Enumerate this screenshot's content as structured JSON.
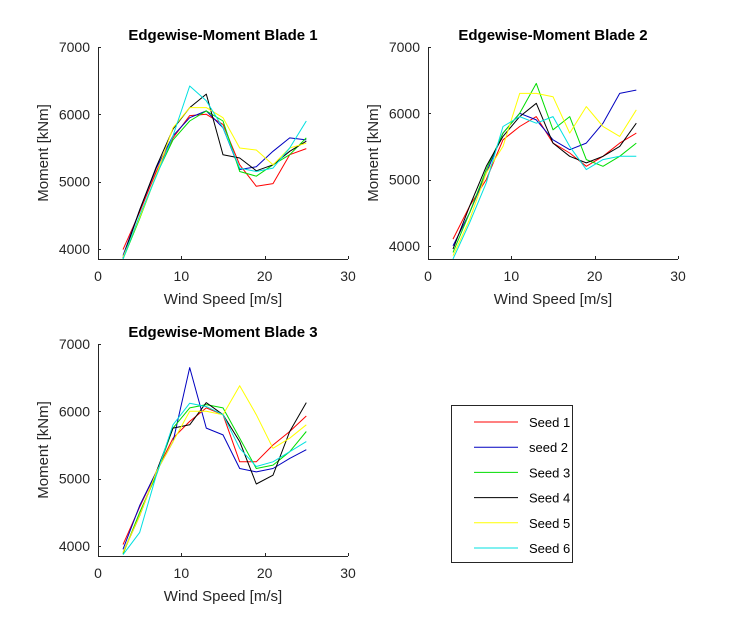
{
  "chart_data": [
    {
      "type": "line",
      "title": "Edgewise-Moment Blade 1",
      "xlabel": "Wind Speed [m/s]",
      "ylabel": "Moment [kNm]",
      "xlim": [
        0,
        30
      ],
      "ylim": [
        3850,
        7000
      ],
      "xticks": [
        0,
        10,
        20,
        30
      ],
      "yticks": [
        4000,
        5000,
        6000,
        7000
      ],
      "grid": false,
      "x": [
        3,
        5,
        7,
        9,
        11,
        13,
        15,
        17,
        19,
        21,
        23,
        25
      ],
      "series": [
        {
          "name": "Seed 1",
          "color": "#ff0000",
          "values": [
            3990,
            4550,
            5150,
            5650,
            5980,
            6000,
            5850,
            5250,
            4930,
            4970,
            5400,
            5490
          ]
        },
        {
          "name": "seed 2",
          "color": "#0000c0",
          "values": [
            3900,
            4580,
            5200,
            5680,
            5950,
            6050,
            5800,
            5180,
            5220,
            5450,
            5650,
            5620
          ]
        },
        {
          "name": "Seed 3",
          "color": "#00dd00",
          "values": [
            3850,
            4450,
            5100,
            5620,
            5900,
            6050,
            5900,
            5150,
            5080,
            5250,
            5400,
            5650
          ]
        },
        {
          "name": "Seed 4",
          "color": "#000000",
          "values": [
            3870,
            4580,
            5220,
            5780,
            6100,
            6300,
            5400,
            5350,
            5160,
            5250,
            5450,
            5600
          ]
        },
        {
          "name": "Seed 5",
          "color": "#ffff00",
          "values": [
            3880,
            4470,
            5100,
            5800,
            6100,
            6100,
            5950,
            5500,
            5470,
            5250,
            5500,
            5570
          ]
        },
        {
          "name": "Seed 6",
          "color": "#00e0e0",
          "values": [
            3850,
            4500,
            5080,
            5680,
            6420,
            6200,
            5800,
            5200,
            5150,
            5200,
            5500,
            5900
          ]
        }
      ]
    },
    {
      "type": "line",
      "title": "Edgewise-Moment Blade 2",
      "xlabel": "Wind Speed [m/s]",
      "ylabel": "Moment [kNm]",
      "xlim": [
        0,
        30
      ],
      "ylim": [
        3800,
        7000
      ],
      "xticks": [
        0,
        10,
        20,
        30
      ],
      "yticks": [
        4000,
        5000,
        6000,
        7000
      ],
      "grid": false,
      "x": [
        3,
        5,
        7,
        9,
        11,
        13,
        15,
        17,
        19,
        21,
        23,
        25
      ],
      "series": [
        {
          "name": "Seed 1",
          "color": "#ff0000",
          "values": [
            4100,
            4600,
            5000,
            5600,
            5800,
            5950,
            5550,
            5400,
            5200,
            5350,
            5550,
            5700
          ]
        },
        {
          "name": "seed 2",
          "color": "#0000c0",
          "values": [
            4000,
            4500,
            5100,
            5700,
            6000,
            5900,
            5600,
            5450,
            5550,
            5850,
            6300,
            6350
          ]
        },
        {
          "name": "Seed 3",
          "color": "#00dd00",
          "values": [
            3900,
            4500,
            5150,
            5700,
            6000,
            6450,
            5750,
            5950,
            5300,
            5200,
            5350,
            5550
          ]
        },
        {
          "name": "Seed 4",
          "color": "#000000",
          "values": [
            3950,
            4600,
            5200,
            5650,
            5950,
            6150,
            5550,
            5350,
            5250,
            5350,
            5500,
            5850
          ]
        },
        {
          "name": "Seed 5",
          "color": "#ffff00",
          "values": [
            3850,
            4400,
            5100,
            5500,
            6300,
            6300,
            6250,
            5700,
            6100,
            5800,
            5650,
            6050
          ]
        },
        {
          "name": "Seed 6",
          "color": "#00e0e0",
          "values": [
            3800,
            4350,
            4950,
            5800,
            5950,
            5850,
            5950,
            5500,
            5150,
            5300,
            5350,
            5350
          ]
        }
      ]
    },
    {
      "type": "line",
      "title": "Edgewise-Moment Blade 3",
      "xlabel": "Wind Speed [m/s]",
      "ylabel": "Moment [kNm]",
      "xlim": [
        0,
        30
      ],
      "ylim": [
        3850,
        7000
      ],
      "xticks": [
        0,
        10,
        20,
        30
      ],
      "yticks": [
        4000,
        5000,
        6000,
        7000
      ],
      "grid": false,
      "x": [
        3,
        5,
        7,
        9,
        11,
        13,
        15,
        17,
        19,
        21,
        23,
        25
      ],
      "series": [
        {
          "name": "Seed 1",
          "color": "#ff0000",
          "values": [
            4020,
            4580,
            5100,
            5600,
            5850,
            6050,
            5950,
            5250,
            5250,
            5500,
            5700,
            5930
          ]
        },
        {
          "name": "seed 2",
          "color": "#0000c0",
          "values": [
            3950,
            4600,
            5100,
            5550,
            6650,
            5750,
            5650,
            5150,
            5100,
            5150,
            5300,
            5430
          ]
        },
        {
          "name": "Seed 3",
          "color": "#00dd00",
          "values": [
            3880,
            4500,
            5050,
            5750,
            6050,
            6100,
            6050,
            5600,
            5150,
            5200,
            5400,
            5700
          ]
        },
        {
          "name": "Seed 4",
          "color": "#000000",
          "values": [
            3900,
            4450,
            5100,
            5750,
            5800,
            6130,
            5950,
            5550,
            4920,
            5050,
            5700,
            6130
          ]
        },
        {
          "name": "Seed 5",
          "color": "#ffff00",
          "values": [
            3900,
            4450,
            5100,
            5550,
            6000,
            6000,
            5950,
            6380,
            5950,
            5450,
            5600,
            5800
          ]
        },
        {
          "name": "Seed 6",
          "color": "#00e0e0",
          "values": [
            3870,
            4200,
            5050,
            5800,
            6120,
            6070,
            5950,
            5450,
            5180,
            5250,
            5400,
            5550
          ]
        }
      ]
    }
  ],
  "legend": {
    "placement": "bottom-right",
    "entries": [
      "Seed 1",
      "seed 2",
      "Seed 3",
      "Seed 4",
      "Seed 5",
      "Seed 6"
    ]
  }
}
